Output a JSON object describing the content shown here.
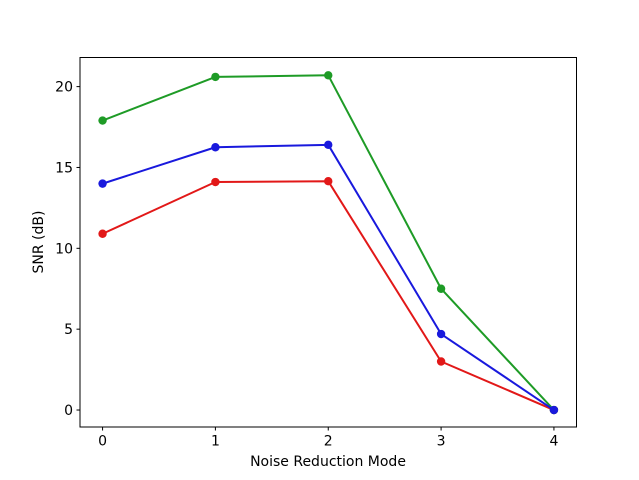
{
  "figure": {
    "background": "#ffffff",
    "text_color": "#000000",
    "spine_color": "#000000"
  },
  "chart_data": {
    "type": "line",
    "title": "",
    "xlabel": "Noise Reduction Mode",
    "ylabel": "SNR (dB)",
    "x": [
      0,
      1,
      2,
      3,
      4
    ],
    "xticks": [
      "0",
      "1",
      "2",
      "3",
      "4"
    ],
    "yticks": [
      "0",
      "5",
      "10",
      "15",
      "20"
    ],
    "xlim": [
      -0.2,
      4.2
    ],
    "ylim": [
      -1.05,
      21.8
    ],
    "grid": false,
    "legend": "none",
    "marker": "circle",
    "series": [
      {
        "name": "red",
        "color": "#e21818",
        "values": [
          10.9,
          14.1,
          14.15,
          3.0,
          0.0
        ]
      },
      {
        "name": "green",
        "color": "#1e9b26",
        "values": [
          17.9,
          20.6,
          20.7,
          7.5,
          0.0
        ]
      },
      {
        "name": "blue",
        "color": "#1919dd",
        "values": [
          14.0,
          16.25,
          16.4,
          4.7,
          0.0
        ]
      }
    ]
  }
}
